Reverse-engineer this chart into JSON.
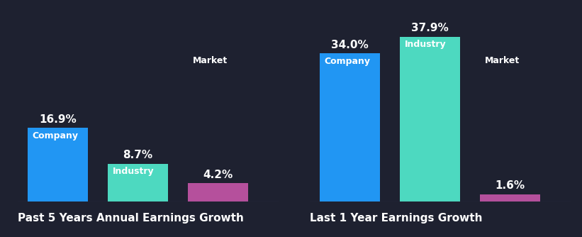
{
  "background_color": "#1e2130",
  "chart1": {
    "title": "Past 5 Years Annual Earnings Growth",
    "bars": [
      {
        "label": "Company",
        "value": 16.9,
        "color": "#2196f3",
        "label_inside": true
      },
      {
        "label": "Industry",
        "value": 8.7,
        "color": "#4dd9c0",
        "label_inside": true
      },
      {
        "label": "Market",
        "value": 4.2,
        "color": "#b5509c",
        "label_inside": false
      }
    ]
  },
  "chart2": {
    "title": "Last 1 Year Earnings Growth",
    "bars": [
      {
        "label": "Company",
        "value": 34.0,
        "color": "#2196f3",
        "label_inside": true
      },
      {
        "label": "Industry",
        "value": 37.9,
        "color": "#4dd9c0",
        "label_inside": true
      },
      {
        "label": "Market",
        "value": 1.6,
        "color": "#b5509c",
        "label_inside": false
      }
    ]
  },
  "text_color": "#ffffff",
  "label_fontsize": 9,
  "value_fontsize": 11,
  "title_fontsize": 11,
  "bar_width": 0.75,
  "global_max_scale": 1.15
}
